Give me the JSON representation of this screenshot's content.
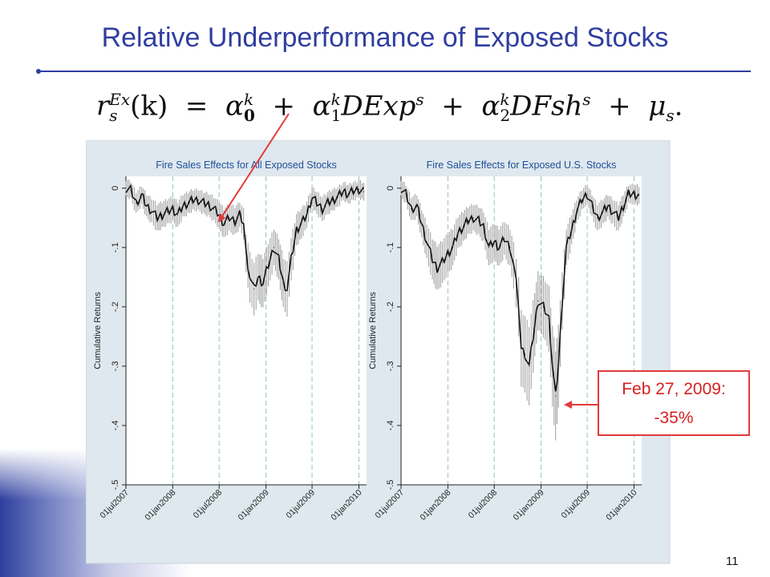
{
  "slide": {
    "title": "Relative Underperformance of Exposed Stocks",
    "page_number": "11",
    "equation": {
      "lhs_base": "r",
      "lhs_sup": "Ex",
      "lhs_sub": "s",
      "lhs_arg": "(k)",
      "alpha0_sup": "k",
      "alpha0_sub": "0",
      "alpha1_sup": "k",
      "alpha1_sub": "1",
      "term1": "DExp",
      "term1_sup": "s",
      "alpha2_sup": "k",
      "alpha2_sub": "2",
      "term2": "DFsh",
      "term2_sup": "s",
      "mu_sub": "s"
    },
    "callout": {
      "line1": "Feb 27, 2009:",
      "line2": "-35%"
    },
    "colors": {
      "title": "#2f3ea0",
      "accent_red": "#e23a3a",
      "plot_background": "#dfe8ee",
      "series_line": "#111111",
      "error_bars": "#9a9a9a",
      "gridline": "#8fc7b5"
    }
  },
  "chart_data": [
    {
      "type": "line",
      "title": "Fire Sales Effects for All Exposed Stocks",
      "ylabel": "Cumulative Returns",
      "xlabel": "",
      "x_ticks": [
        "01jul2007",
        "01jan2008",
        "01jul2008",
        "01jan2009",
        "01jul2009",
        "01jan2010"
      ],
      "y_ticks": [
        "0",
        "-.1",
        "-.2",
        "-.3",
        "-.4",
        "-.5"
      ],
      "ylim": [
        -0.5,
        0.02
      ],
      "xlim": [
        "2007-07-01",
        "2010-01-31"
      ],
      "grid": "vertical dashed lines at x ticks",
      "series": [
        {
          "error_bars": true,
          "points": [
            [
              "2007-07-01",
              0.0
            ],
            [
              "2007-07-20",
              -0.003
            ],
            [
              "2007-08-10",
              -0.025
            ],
            [
              "2007-09-01",
              -0.012
            ],
            [
              "2007-09-20",
              -0.03
            ],
            [
              "2007-10-10",
              -0.038
            ],
            [
              "2007-11-01",
              -0.05
            ],
            [
              "2007-11-20",
              -0.045
            ],
            [
              "2007-12-10",
              -0.04
            ],
            [
              "2008-01-01",
              -0.035
            ],
            [
              "2008-01-20",
              -0.045
            ],
            [
              "2008-02-10",
              -0.03
            ],
            [
              "2008-03-01",
              -0.025
            ],
            [
              "2008-03-20",
              -0.02
            ],
            [
              "2008-04-10",
              -0.02
            ],
            [
              "2008-05-01",
              -0.025
            ],
            [
              "2008-05-20",
              -0.028
            ],
            [
              "2008-06-10",
              -0.035
            ],
            [
              "2008-07-01",
              -0.045
            ],
            [
              "2008-07-20",
              -0.06
            ],
            [
              "2008-08-10",
              -0.05
            ],
            [
              "2008-09-01",
              -0.055
            ],
            [
              "2008-09-20",
              -0.045
            ],
            [
              "2008-10-05",
              -0.06
            ],
            [
              "2008-10-15",
              -0.11
            ],
            [
              "2008-10-30",
              -0.15
            ],
            [
              "2008-11-15",
              -0.17
            ],
            [
              "2008-12-01",
              -0.15
            ],
            [
              "2008-12-20",
              -0.16
            ],
            [
              "2009-01-10",
              -0.13
            ],
            [
              "2009-02-01",
              -0.1
            ],
            [
              "2009-02-20",
              -0.12
            ],
            [
              "2009-03-10",
              -0.16
            ],
            [
              "2009-03-25",
              -0.17
            ],
            [
              "2009-04-10",
              -0.12
            ],
            [
              "2009-05-01",
              -0.07
            ],
            [
              "2009-05-20",
              -0.06
            ],
            [
              "2009-06-10",
              -0.045
            ],
            [
              "2009-07-01",
              -0.015
            ],
            [
              "2009-07-20",
              -0.025
            ],
            [
              "2009-08-10",
              -0.035
            ],
            [
              "2009-09-01",
              -0.025
            ],
            [
              "2009-09-20",
              -0.02
            ],
            [
              "2009-10-10",
              -0.015
            ],
            [
              "2009-11-01",
              -0.005
            ],
            [
              "2009-11-20",
              -0.01
            ],
            [
              "2009-12-10",
              -0.005
            ],
            [
              "2010-01-01",
              -0.002
            ],
            [
              "2010-01-20",
              -0.006
            ]
          ]
        }
      ],
      "annotations": []
    },
    {
      "type": "line",
      "title": "Fire Sales Effects for Exposed U.S. Stocks",
      "ylabel": "Cumulative Returns",
      "xlabel": "",
      "x_ticks": [
        "01jul2007",
        "01jan2008",
        "01jul2008",
        "01jan2009",
        "01jul2009",
        "01jan2010"
      ],
      "y_ticks": [
        "0",
        "-.1",
        "-.2",
        "-.3",
        "-.4",
        "-.5"
      ],
      "ylim": [
        -0.5,
        0.02
      ],
      "xlim": [
        "2007-07-01",
        "2010-01-31"
      ],
      "grid": "vertical dashed lines at x ticks",
      "series": [
        {
          "error_bars": true,
          "points": [
            [
              "2007-07-01",
              0.0
            ],
            [
              "2007-07-20",
              -0.01
            ],
            [
              "2007-08-10",
              -0.035
            ],
            [
              "2007-09-01",
              -0.03
            ],
            [
              "2007-09-20",
              -0.06
            ],
            [
              "2007-10-10",
              -0.09
            ],
            [
              "2007-11-01",
              -0.12
            ],
            [
              "2007-11-20",
              -0.135
            ],
            [
              "2007-12-10",
              -0.125
            ],
            [
              "2008-01-01",
              -0.11
            ],
            [
              "2008-01-20",
              -0.1
            ],
            [
              "2008-02-10",
              -0.075
            ],
            [
              "2008-03-01",
              -0.065
            ],
            [
              "2008-03-20",
              -0.055
            ],
            [
              "2008-04-10",
              -0.05
            ],
            [
              "2008-05-01",
              -0.055
            ],
            [
              "2008-05-20",
              -0.065
            ],
            [
              "2008-06-10",
              -0.1
            ],
            [
              "2008-07-01",
              -0.09
            ],
            [
              "2008-07-20",
              -0.1
            ],
            [
              "2008-08-10",
              -0.085
            ],
            [
              "2008-09-01",
              -0.1
            ],
            [
              "2008-09-15",
              -0.13
            ],
            [
              "2008-09-25",
              -0.16
            ],
            [
              "2008-10-05",
              -0.2
            ],
            [
              "2008-10-15",
              -0.27
            ],
            [
              "2008-10-30",
              -0.28
            ],
            [
              "2008-11-15",
              -0.3
            ],
            [
              "2008-12-01",
              -0.25
            ],
            [
              "2008-12-20",
              -0.19
            ],
            [
              "2009-01-10",
              -0.2
            ],
            [
              "2009-02-01",
              -0.22
            ],
            [
              "2009-02-15",
              -0.3
            ],
            [
              "2009-02-27",
              -0.35
            ],
            [
              "2009-03-10",
              -0.3
            ],
            [
              "2009-03-25",
              -0.19
            ],
            [
              "2009-04-10",
              -0.1
            ],
            [
              "2009-05-01",
              -0.07
            ],
            [
              "2009-05-20",
              -0.04
            ],
            [
              "2009-06-10",
              -0.02
            ],
            [
              "2009-07-01",
              -0.01
            ],
            [
              "2009-07-20",
              -0.03
            ],
            [
              "2009-08-10",
              -0.05
            ],
            [
              "2009-09-01",
              -0.04
            ],
            [
              "2009-09-20",
              -0.03
            ],
            [
              "2009-10-10",
              -0.04
            ],
            [
              "2009-11-01",
              -0.05
            ],
            [
              "2009-11-20",
              -0.03
            ],
            [
              "2009-12-10",
              -0.01
            ],
            [
              "2010-01-01",
              -0.01
            ],
            [
              "2010-01-20",
              -0.012
            ]
          ]
        }
      ],
      "annotations": [
        {
          "text": "Feb 27, 2009:",
          "x": "2009-02-27",
          "y": -0.35
        },
        {
          "text": "-35%",
          "x": "2009-02-27",
          "y": -0.35
        }
      ]
    }
  ]
}
